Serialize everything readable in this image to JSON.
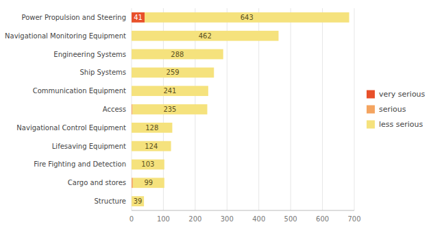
{
  "chart_data": {
    "type": "bar",
    "orientation": "horizontal",
    "stacked": true,
    "categories": [
      "Power Propulsion and Steering",
      "Navigational Monitoring Equipment",
      "Engineering Systems",
      "Ship Systems",
      "Communication Equipment",
      "Access",
      "Navigational Control Equipment",
      "Lifesaving Equipment",
      "Fire Fighting and Detection",
      "Cargo and stores",
      "Structure"
    ],
    "series": [
      {
        "name": "very serious",
        "color": "#e8502a",
        "data_labels": true,
        "values": [
          41,
          0,
          0,
          0,
          0,
          0,
          0,
          0,
          0,
          0,
          0
        ]
      },
      {
        "name": "serious",
        "color": "#f4a460",
        "values": [
          0,
          0,
          0,
          0,
          0,
          3,
          0,
          0,
          0,
          4,
          0
        ]
      },
      {
        "name": "less serious",
        "color": "#f5e27d",
        "data_labels": true,
        "values": [
          643,
          462,
          288,
          259,
          241,
          235,
          128,
          124,
          103,
          99,
          39
        ]
      }
    ],
    "xlim": [
      0,
      700
    ],
    "xticks": [
      0,
      100,
      200,
      300,
      400,
      500,
      600,
      700
    ],
    "grid": true,
    "legend": "right"
  }
}
